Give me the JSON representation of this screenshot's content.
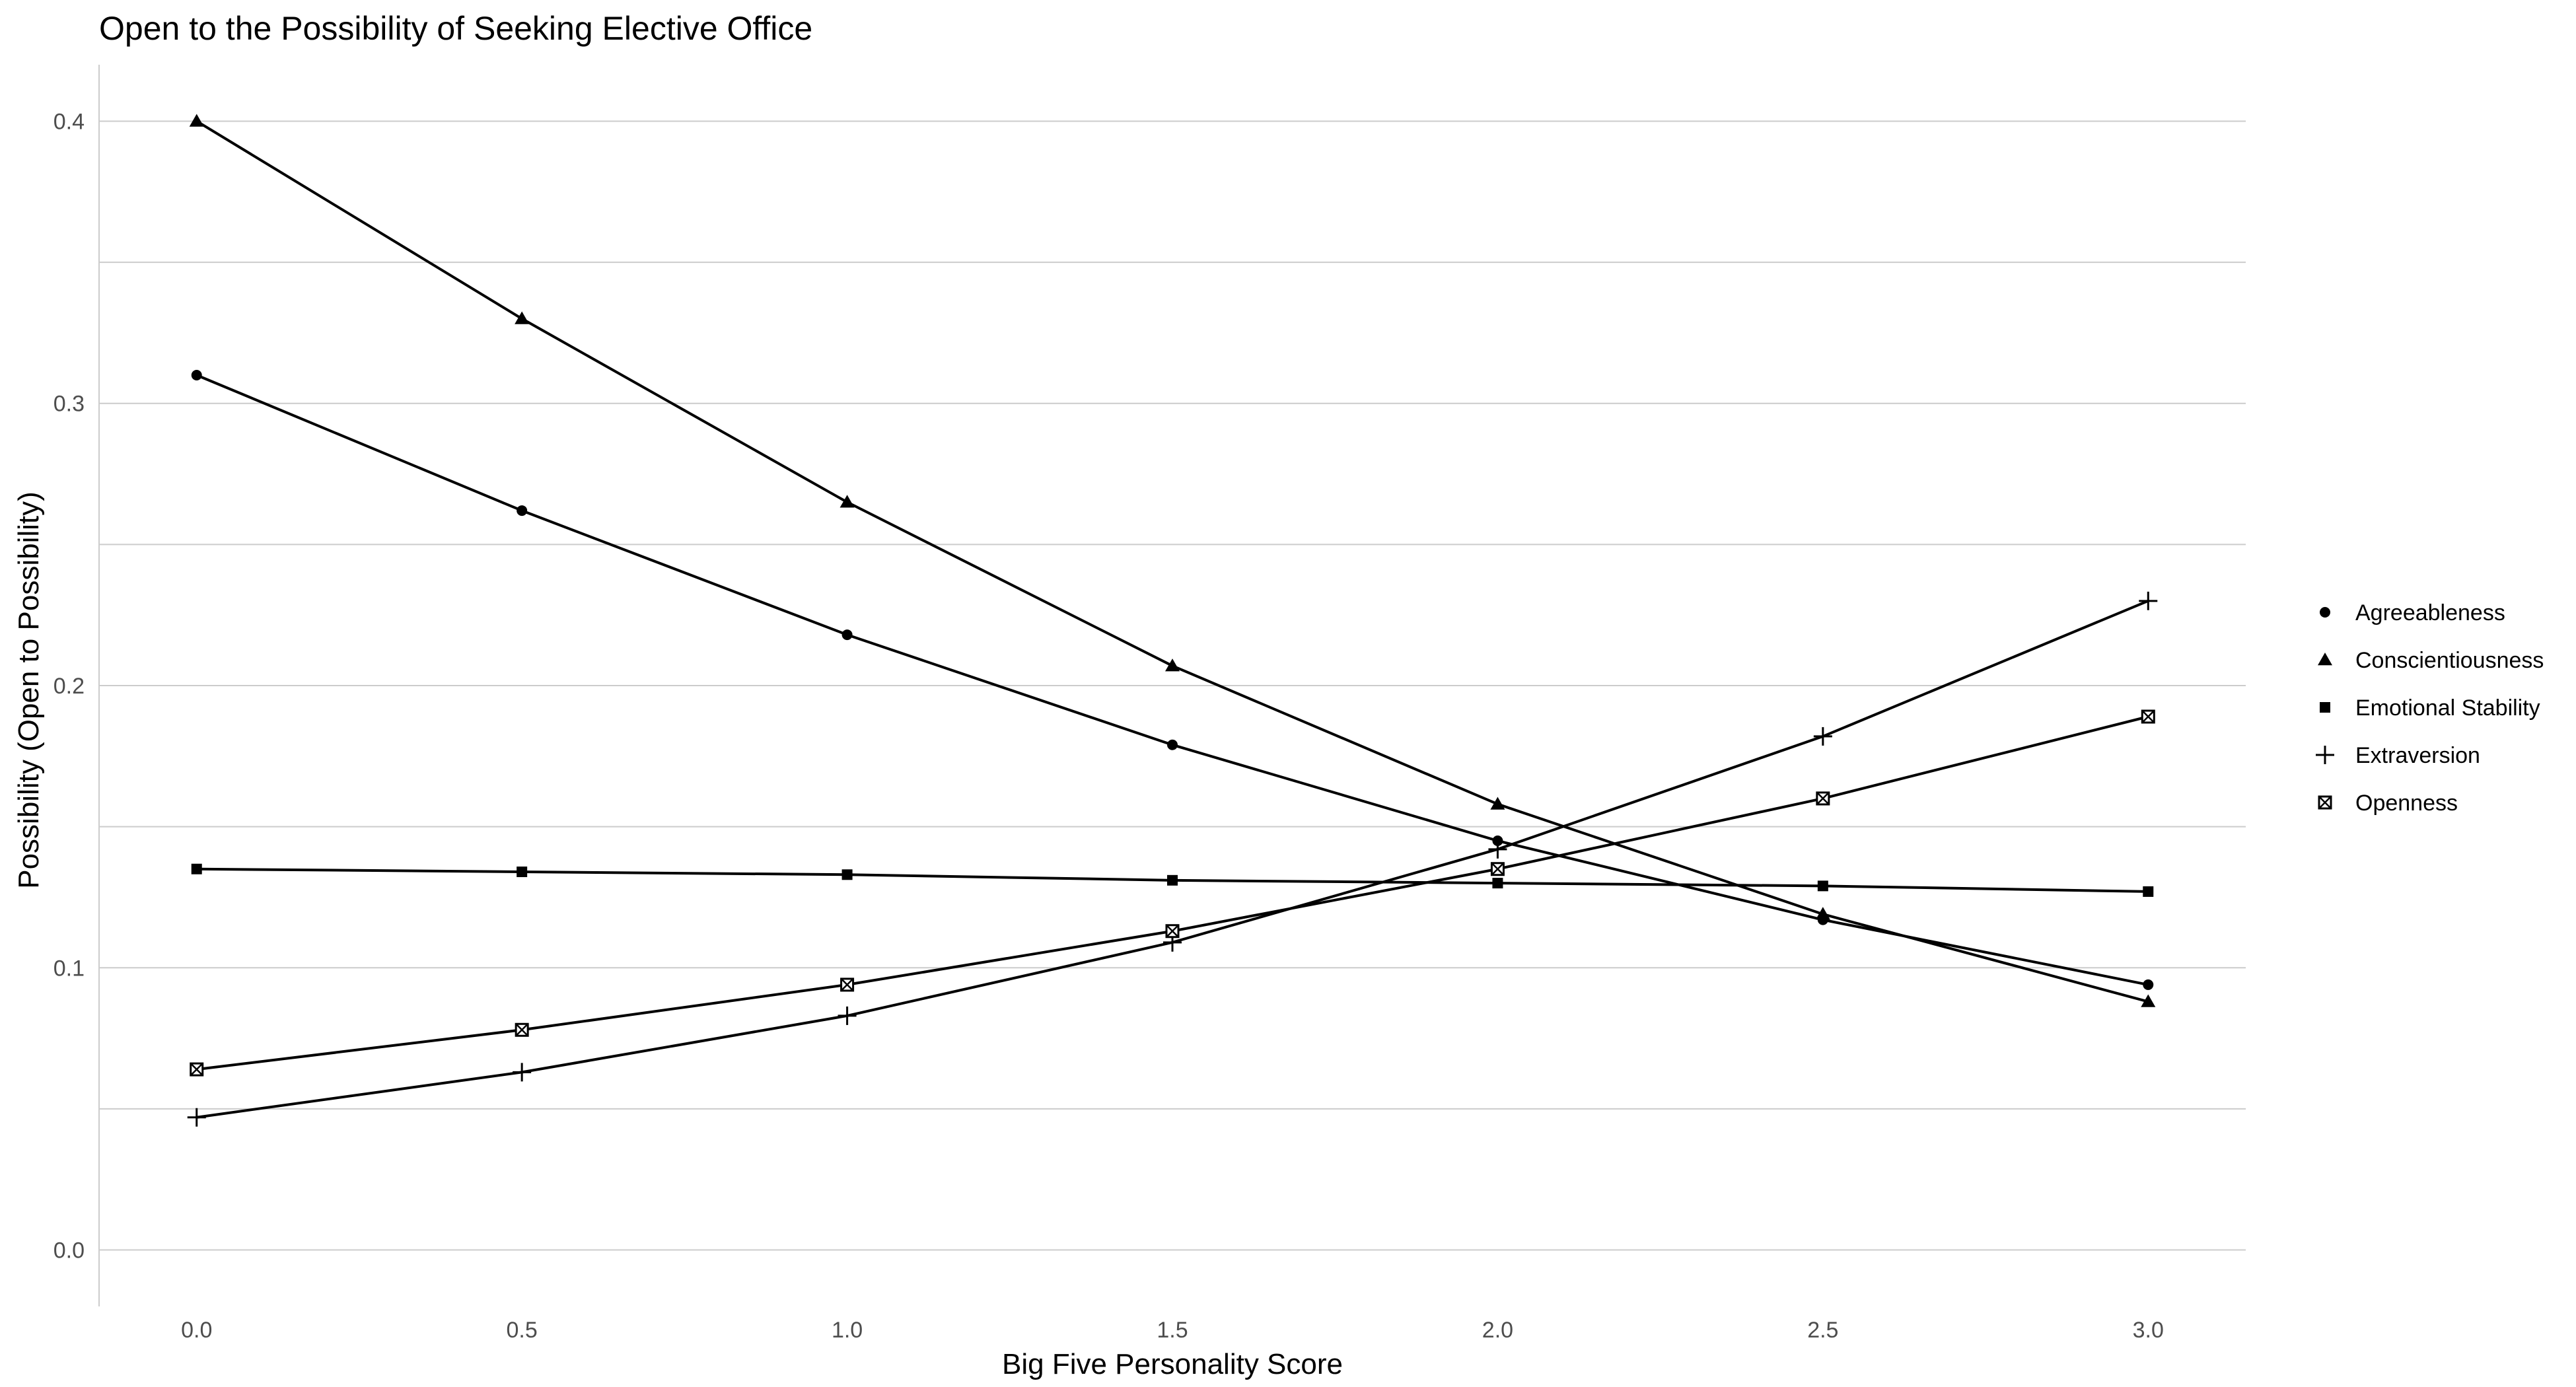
{
  "chart_data": {
    "type": "line",
    "title": "Open to the Possibility of Seeking Elective Office",
    "xlabel": "Big Five Personality Score",
    "ylabel": "Possibility (Open to Possibility)",
    "xlim": [
      -0.15,
      3.15
    ],
    "ylim": [
      -0.02,
      0.42
    ],
    "x_ticks": [
      0.0,
      0.5,
      1.0,
      1.5,
      2.0,
      2.5,
      3.0
    ],
    "x_tick_labels": [
      "0.0",
      "0.5",
      "1.0",
      "1.5",
      "2.0",
      "2.5",
      "3.0"
    ],
    "y_ticks": [
      0.0,
      0.1,
      0.2,
      0.3,
      0.4
    ],
    "y_tick_labels": [
      "0.0",
      "0.1",
      "0.2",
      "0.3",
      "0.4"
    ],
    "grid": "horizontal",
    "legend_position": "right",
    "x": [
      0.0,
      0.5,
      1.0,
      1.5,
      2.0,
      2.5,
      3.0
    ],
    "series": [
      {
        "name": "Agreeableness",
        "marker": "circle",
        "values": [
          0.31,
          0.262,
          0.218,
          0.179,
          0.145,
          0.117,
          0.094
        ]
      },
      {
        "name": "Conscientiousness",
        "marker": "triangle",
        "values": [
          0.4,
          0.33,
          0.265,
          0.207,
          0.158,
          0.119,
          0.088
        ]
      },
      {
        "name": "Emotional Stability",
        "marker": "square",
        "values": [
          0.135,
          0.134,
          0.133,
          0.131,
          0.13,
          0.129,
          0.127
        ]
      },
      {
        "name": "Extraversion",
        "marker": "plus",
        "values": [
          0.047,
          0.063,
          0.083,
          0.109,
          0.142,
          0.182,
          0.23
        ]
      },
      {
        "name": "Openness",
        "marker": "square-cross",
        "values": [
          0.064,
          0.078,
          0.094,
          0.113,
          0.135,
          0.16,
          0.189
        ]
      }
    ],
    "line_color": "#000000",
    "grid_color": "#cccccc"
  }
}
